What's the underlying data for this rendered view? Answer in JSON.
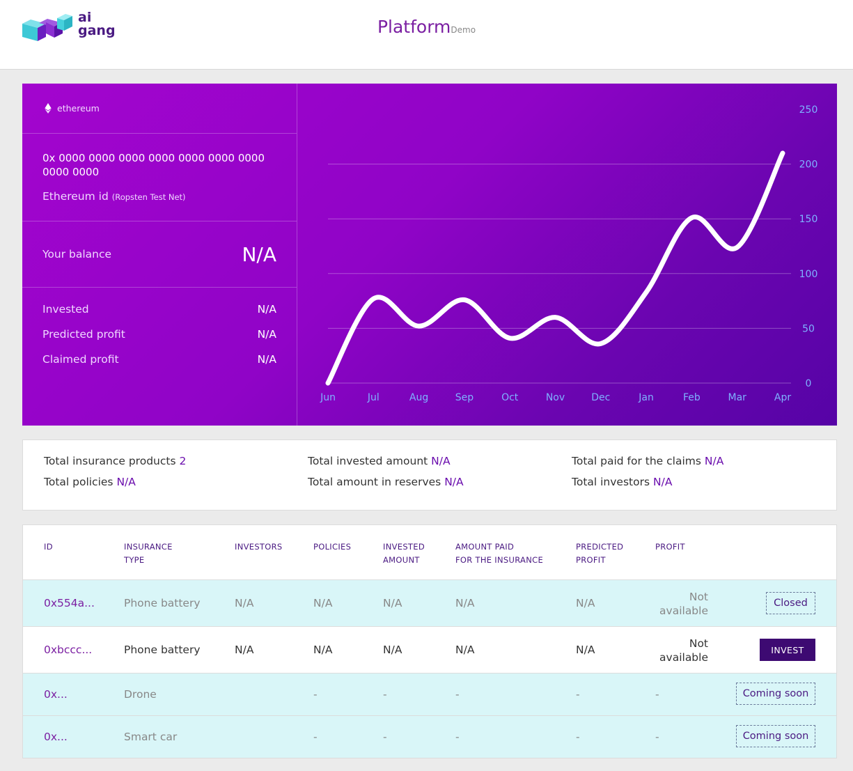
{
  "header": {
    "logo_line1": "ai",
    "logo_line2": "gang",
    "title": "Platform",
    "title_badge": "Demo"
  },
  "wallet": {
    "network": "ethereum",
    "address": "0x 0000 0000 0000 0000 0000 0000 0000 0000 0000",
    "id_label": "Ethereum id",
    "id_note": "(Ropsten Test Net)",
    "balance_label": "Your balance",
    "balance_value": "N/A",
    "stats": [
      {
        "label": "Invested",
        "value": "N/A"
      },
      {
        "label": "Predicted profit",
        "value": "N/A"
      },
      {
        "label": "Claimed profit",
        "value": "N/A"
      }
    ]
  },
  "chart_data": {
    "type": "line",
    "categories": [
      "Jun",
      "Jul",
      "Aug",
      "Sep",
      "Oct",
      "Nov",
      "Dec",
      "Jan",
      "Feb",
      "Mar",
      "Apr"
    ],
    "series": [
      {
        "values": [
          0,
          77,
          52,
          76,
          41,
          60,
          36,
          83,
          151,
          124,
          210
        ]
      }
    ],
    "ylim": [
      0,
      250
    ],
    "yticks": [
      0,
      50,
      100,
      150,
      200,
      250
    ],
    "grid": true,
    "colors": {
      "line": "#ffffff",
      "tick": "#7fb2ff",
      "grid": "rgba(255,255,255,0.3)"
    }
  },
  "totals": {
    "products": {
      "label": "Total insurance products",
      "value": "2"
    },
    "policies": {
      "label": "Total policies",
      "value": "N/A"
    },
    "invested": {
      "label": "Total invested amount",
      "value": "N/A"
    },
    "reserves": {
      "label": "Total amount in reserves",
      "value": "N/A"
    },
    "claims": {
      "label": "Total paid for the claims",
      "value": "N/A"
    },
    "investors": {
      "label": "Total investors",
      "value": "N/A"
    }
  },
  "table": {
    "headers": {
      "id": "ID",
      "type_1": "INSURANCE",
      "type_2": "TYPE",
      "investors": "INVESTORS",
      "policies": "POLICIES",
      "invested_1": "INVESTED",
      "invested_2": "AMOUNT",
      "paid_1": "AMOUNT PAID",
      "paid_2": "FOR THE INSURANCE",
      "predicted_1": "PREDICTED",
      "predicted_2": "PROFIT",
      "profit": "PROFIT"
    },
    "rows": [
      {
        "id": "0x554a...",
        "type": "Phone battery",
        "investors": "N/A",
        "policies": "N/A",
        "invested": "N/A",
        "paid": "N/A",
        "predicted": "N/A",
        "profit_1": "Not",
        "profit_2": "available",
        "action": "Closed"
      },
      {
        "id": "0xbccc...",
        "type": "Phone battery",
        "investors": "N/A",
        "policies": "N/A",
        "invested": "N/A",
        "paid": "N/A",
        "predicted": "N/A",
        "profit_1": "Not",
        "profit_2": "available",
        "action": "INVEST"
      },
      {
        "id": "0x...",
        "type": "Drone",
        "policies": "-",
        "invested": "-",
        "paid": "-",
        "predicted": "-",
        "profit": "-",
        "action": "Coming soon"
      },
      {
        "id": "0x...",
        "type": "Smart car",
        "policies": "-",
        "invested": "-",
        "paid": "-",
        "predicted": "-",
        "profit": "-",
        "action": "Coming soon"
      }
    ]
  }
}
